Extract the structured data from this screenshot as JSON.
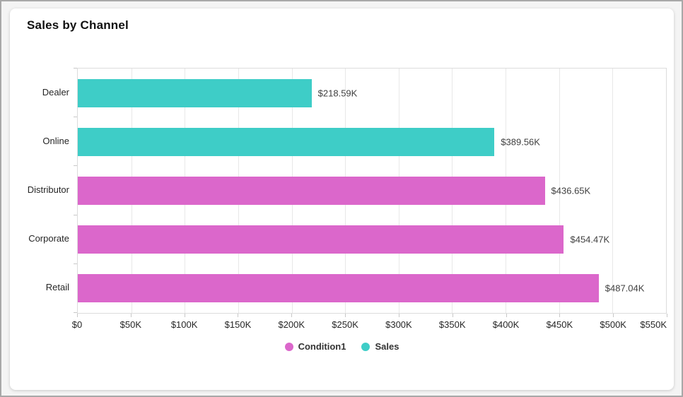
{
  "chart_data": {
    "type": "bar",
    "orientation": "horizontal",
    "title": "Sales by Channel",
    "categories": [
      "Dealer",
      "Online",
      "Distributor",
      "Corporate",
      "Retail"
    ],
    "values": [
      218590,
      389560,
      436650,
      454470,
      487040
    ],
    "value_labels": [
      "$218.59K",
      "$389.56K",
      "$436.65K",
      "$454.47K",
      "$487.04K"
    ],
    "bar_colors": [
      "#3ecdc7",
      "#3ecdc7",
      "#db67cb",
      "#db67cb",
      "#db67cb"
    ],
    "series": [
      {
        "name": "Condition1",
        "color": "#db67cb",
        "categories": [
          "Distributor",
          "Corporate",
          "Retail"
        ]
      },
      {
        "name": "Sales",
        "color": "#3ecdc7",
        "categories": [
          "Dealer",
          "Online"
        ]
      }
    ],
    "xlim": [
      0,
      550000
    ],
    "x_tick_labels": [
      "$0",
      "$50K",
      "$100K",
      "$150K",
      "$200K",
      "$250K",
      "$300K",
      "$350K",
      "$400K",
      "$450K",
      "$500K",
      "$550K"
    ],
    "x_tick_values": [
      0,
      50000,
      100000,
      150000,
      200000,
      250000,
      300000,
      350000,
      400000,
      450000,
      500000,
      550000
    ],
    "grid": "vertical-only",
    "legend": {
      "position": "bottom-center",
      "items": [
        {
          "label": "Condition1",
          "color": "#db67cb"
        },
        {
          "label": "Sales",
          "color": "#3ecdc7"
        }
      ]
    }
  },
  "colors": {
    "frame_border": "#a8a8a8",
    "page_background": "#f4f4f4",
    "card_background": "#ffffff",
    "gridline": "#e8e8e8",
    "plot_border": "#dcdcdc",
    "tick": "#c8c8c8",
    "axis_label": "#262626",
    "value_label": "#404040",
    "title": "#111111"
  }
}
